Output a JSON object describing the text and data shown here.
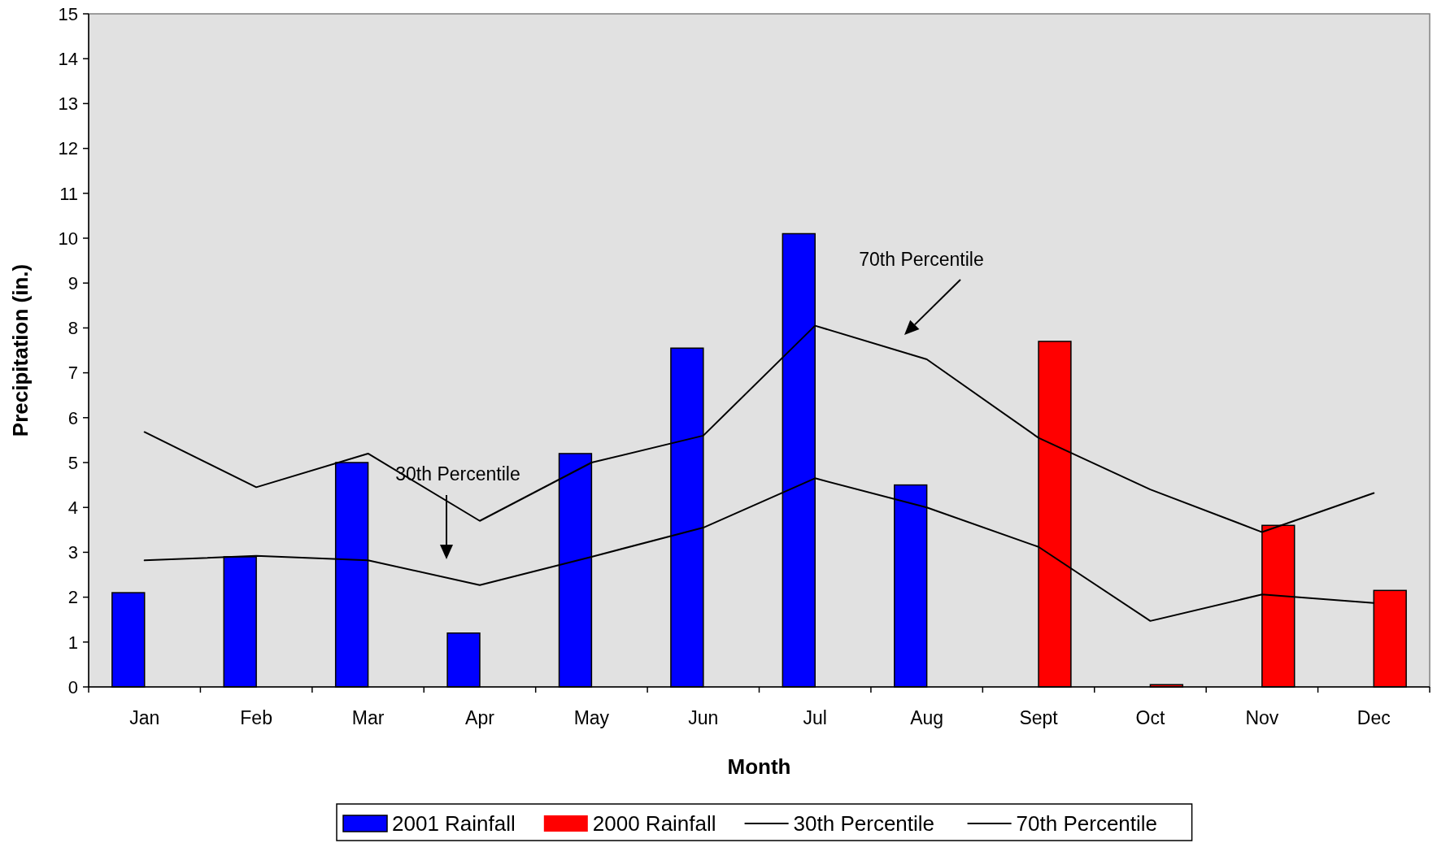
{
  "chart_data": {
    "type": "bar",
    "xlabel": "Month",
    "ylabel": "Precipitation (in.)",
    "categories": [
      "Jan",
      "Feb",
      "Mar",
      "Apr",
      "May",
      "Jun",
      "Jul",
      "Aug",
      "Sept",
      "Oct",
      "Nov",
      "Dec"
    ],
    "series": [
      {
        "name": "2001 Rainfall",
        "color": "#0000ff",
        "values": [
          2.1,
          2.9,
          5.0,
          1.2,
          5.2,
          7.55,
          10.1,
          4.5,
          null,
          null,
          null,
          null
        ]
      },
      {
        "name": "2000 Rainfall",
        "color": "#ff0000",
        "values": [
          null,
          null,
          null,
          null,
          null,
          null,
          null,
          null,
          7.7,
          0.05,
          3.6,
          2.15
        ]
      },
      {
        "name": "30th Percentile",
        "type": "line",
        "color": "#000000",
        "values": [
          2.82,
          2.92,
          2.82,
          2.27,
          2.9,
          3.55,
          4.65,
          4.0,
          3.12,
          1.47,
          2.06,
          1.87
        ]
      },
      {
        "name": "70th Percentile",
        "type": "line",
        "color": "#000000",
        "values": [
          5.68,
          4.45,
          5.2,
          3.7,
          5.0,
          5.6,
          8.05,
          7.3,
          5.55,
          4.4,
          3.45,
          4.32
        ]
      }
    ],
    "annotations": [
      "70th Percentile",
      "30th Percentile"
    ],
    "ylim": [
      0,
      15
    ],
    "yticks": [
      0,
      1,
      2,
      3,
      4,
      5,
      6,
      7,
      8,
      9,
      10,
      11,
      12,
      13,
      14,
      15
    ],
    "grid": false,
    "legend": "bottom",
    "marker": "none",
    "line_style": "solid"
  }
}
